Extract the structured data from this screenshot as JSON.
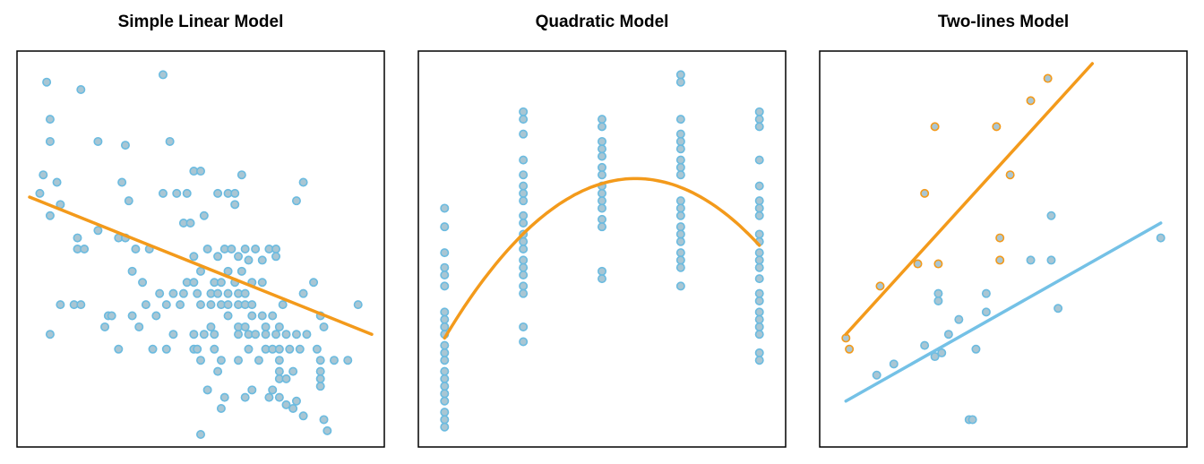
{
  "colors": {
    "points_fill": "#a9c6d3",
    "points_stroke": "#6bbbe0",
    "orange": "#f39a1b",
    "blue": "#74c1e6",
    "orange_fill": "#a9c6d3"
  },
  "chart_data": [
    {
      "type": "scatter",
      "title": "Simple Linear Model",
      "xlabel": "",
      "ylabel": "",
      "xlim": [
        0,
        100
      ],
      "ylim": [
        0,
        100
      ],
      "grid": false,
      "points": [
        [
          5,
          95
        ],
        [
          15,
          93
        ],
        [
          39,
          97
        ],
        [
          6,
          85
        ],
        [
          6,
          79
        ],
        [
          20,
          79
        ],
        [
          28,
          78
        ],
        [
          41,
          79
        ],
        [
          4,
          70
        ],
        [
          8,
          68
        ],
        [
          48,
          71
        ],
        [
          50,
          71
        ],
        [
          27,
          68
        ],
        [
          62,
          70
        ],
        [
          80,
          68
        ],
        [
          3,
          65
        ],
        [
          29,
          63
        ],
        [
          39,
          65
        ],
        [
          43,
          65
        ],
        [
          46,
          65
        ],
        [
          55,
          65
        ],
        [
          58,
          65
        ],
        [
          60,
          65
        ],
        [
          9,
          62
        ],
        [
          60,
          62
        ],
        [
          78,
          63
        ],
        [
          6,
          59
        ],
        [
          51,
          59
        ],
        [
          45,
          57
        ],
        [
          47,
          57
        ],
        [
          20,
          55
        ],
        [
          14,
          53
        ],
        [
          26,
          53
        ],
        [
          28,
          53
        ],
        [
          14,
          50
        ],
        [
          16,
          50
        ],
        [
          31,
          50
        ],
        [
          35,
          50
        ],
        [
          52,
          50
        ],
        [
          57,
          50
        ],
        [
          59,
          50
        ],
        [
          63,
          50
        ],
        [
          66,
          50
        ],
        [
          70,
          50
        ],
        [
          72,
          50
        ],
        [
          72,
          48
        ],
        [
          48,
          48
        ],
        [
          55,
          48
        ],
        [
          61,
          48
        ],
        [
          64,
          47
        ],
        [
          68,
          47
        ],
        [
          30,
          44
        ],
        [
          50,
          44
        ],
        [
          58,
          44
        ],
        [
          62,
          44
        ],
        [
          33,
          41
        ],
        [
          46,
          41
        ],
        [
          48,
          41
        ],
        [
          54,
          41
        ],
        [
          56,
          41
        ],
        [
          60,
          41
        ],
        [
          65,
          41
        ],
        [
          68,
          41
        ],
        [
          83,
          41
        ],
        [
          38,
          38
        ],
        [
          42,
          38
        ],
        [
          45,
          38
        ],
        [
          49,
          38
        ],
        [
          53,
          38
        ],
        [
          55,
          38
        ],
        [
          58,
          38
        ],
        [
          61,
          38
        ],
        [
          63,
          38
        ],
        [
          80,
          38
        ],
        [
          9,
          35
        ],
        [
          13,
          35
        ],
        [
          15,
          35
        ],
        [
          34,
          35
        ],
        [
          40,
          35
        ],
        [
          44,
          35
        ],
        [
          50,
          35
        ],
        [
          53,
          35
        ],
        [
          56,
          35
        ],
        [
          58,
          35
        ],
        [
          61,
          35
        ],
        [
          63,
          35
        ],
        [
          65,
          35
        ],
        [
          74,
          35
        ],
        [
          96,
          35
        ],
        [
          23,
          32
        ],
        [
          24,
          32
        ],
        [
          30,
          32
        ],
        [
          37,
          32
        ],
        [
          58,
          32
        ],
        [
          65,
          32
        ],
        [
          68,
          32
        ],
        [
          71,
          32
        ],
        [
          85,
          32
        ],
        [
          22,
          29
        ],
        [
          32,
          29
        ],
        [
          53,
          29
        ],
        [
          61,
          29
        ],
        [
          63,
          29
        ],
        [
          69,
          29
        ],
        [
          73,
          29
        ],
        [
          86,
          29
        ],
        [
          6,
          27
        ],
        [
          42,
          27
        ],
        [
          48,
          27
        ],
        [
          51,
          27
        ],
        [
          54,
          27
        ],
        [
          61,
          27
        ],
        [
          64,
          27
        ],
        [
          66,
          27
        ],
        [
          69,
          27
        ],
        [
          72,
          27
        ],
        [
          75,
          27
        ],
        [
          78,
          27
        ],
        [
          81,
          27
        ],
        [
          26,
          23
        ],
        [
          36,
          23
        ],
        [
          40,
          23
        ],
        [
          48,
          23
        ],
        [
          49,
          23
        ],
        [
          54,
          23
        ],
        [
          64,
          23
        ],
        [
          69,
          23
        ],
        [
          71,
          23
        ],
        [
          73,
          23
        ],
        [
          76,
          23
        ],
        [
          79,
          23
        ],
        [
          84,
          23
        ],
        [
          50,
          20
        ],
        [
          56,
          20
        ],
        [
          61,
          20
        ],
        [
          67,
          20
        ],
        [
          73,
          20
        ],
        [
          85,
          20
        ],
        [
          89,
          20
        ],
        [
          93,
          20
        ],
        [
          55,
          17
        ],
        [
          73,
          17
        ],
        [
          77,
          17
        ],
        [
          85,
          17
        ],
        [
          73,
          15
        ],
        [
          75,
          15
        ],
        [
          85,
          13
        ],
        [
          52,
          12
        ],
        [
          65,
          12
        ],
        [
          71,
          12
        ],
        [
          57,
          10
        ],
        [
          63,
          10
        ],
        [
          70,
          10
        ],
        [
          73,
          10
        ],
        [
          78,
          9
        ],
        [
          56,
          7
        ],
        [
          77,
          7
        ],
        [
          80,
          5
        ],
        [
          85,
          15
        ],
        [
          87,
          1
        ],
        [
          50,
          0
        ],
        [
          75,
          8
        ],
        [
          86,
          4
        ]
      ],
      "fit_line": {
        "color": "orange",
        "x": [
          0,
          100
        ],
        "y": [
          64,
          27
        ]
      }
    },
    {
      "type": "scatter",
      "title": "Quadratic Model",
      "xlabel": "",
      "ylabel": "",
      "xlim": [
        0,
        100
      ],
      "ylim": [
        0,
        100
      ],
      "grid": false,
      "columns": [
        {
          "x": 4,
          "y": [
            61,
            56,
            49,
            45,
            43,
            40,
            33,
            31,
            29,
            27,
            24,
            22,
            20,
            17,
            15,
            13,
            11,
            9,
            6,
            4,
            2
          ]
        },
        {
          "x": 27,
          "y": [
            87,
            85,
            81,
            74,
            70,
            67,
            65,
            63,
            59,
            57,
            54,
            52,
            50,
            47,
            45,
            43,
            40,
            38,
            29,
            25
          ]
        },
        {
          "x": 50,
          "y": [
            85,
            83,
            79,
            77,
            75,
            72,
            70,
            67,
            65,
            63,
            61,
            58,
            56,
            44,
            42
          ]
        },
        {
          "x": 73,
          "y": [
            97,
            95,
            85,
            81,
            79,
            77,
            74,
            72,
            70,
            63,
            61,
            59,
            56,
            54,
            52,
            49,
            47,
            45,
            40
          ]
        },
        {
          "x": 96,
          "y": [
            87,
            85,
            83,
            74,
            67,
            63,
            61,
            59,
            54,
            52,
            49,
            47,
            45,
            42,
            38,
            36,
            33,
            31,
            29,
            27,
            22,
            20
          ]
        }
      ],
      "fit_curve": {
        "color": "orange",
        "x": [
          4,
          60,
          96
        ],
        "y": [
          26,
          69,
          51
        ]
      }
    },
    {
      "type": "scatter",
      "title": "Two-lines Model",
      "xlabel": "",
      "ylabel": "",
      "xlim": [
        0,
        100
      ],
      "ylim": [
        0,
        100
      ],
      "grid": false,
      "orange_points": [
        [
          63,
          96
        ],
        [
          58,
          90
        ],
        [
          30,
          83
        ],
        [
          48,
          83
        ],
        [
          52,
          70
        ],
        [
          27,
          65
        ],
        [
          49,
          53
        ],
        [
          49,
          47
        ],
        [
          25,
          46
        ],
        [
          31,
          46
        ],
        [
          14,
          40
        ],
        [
          4,
          26
        ],
        [
          5,
          23
        ]
      ],
      "blue_points": [
        [
          64,
          59
        ],
        [
          96,
          53
        ],
        [
          58,
          47
        ],
        [
          64,
          47
        ],
        [
          45,
          38
        ],
        [
          31,
          38
        ],
        [
          31,
          36
        ],
        [
          37,
          31
        ],
        [
          45,
          33
        ],
        [
          66,
          34
        ],
        [
          34,
          27
        ],
        [
          27,
          24
        ],
        [
          30,
          21
        ],
        [
          32,
          22
        ],
        [
          42,
          23
        ],
        [
          18,
          19
        ],
        [
          13,
          16
        ],
        [
          40,
          4
        ],
        [
          41,
          4
        ]
      ],
      "orange_line": {
        "color": "orange",
        "x": [
          4,
          76
        ],
        "y": [
          27,
          100
        ]
      },
      "blue_line": {
        "color": "blue",
        "x": [
          4,
          96
        ],
        "y": [
          9,
          57
        ]
      }
    }
  ]
}
